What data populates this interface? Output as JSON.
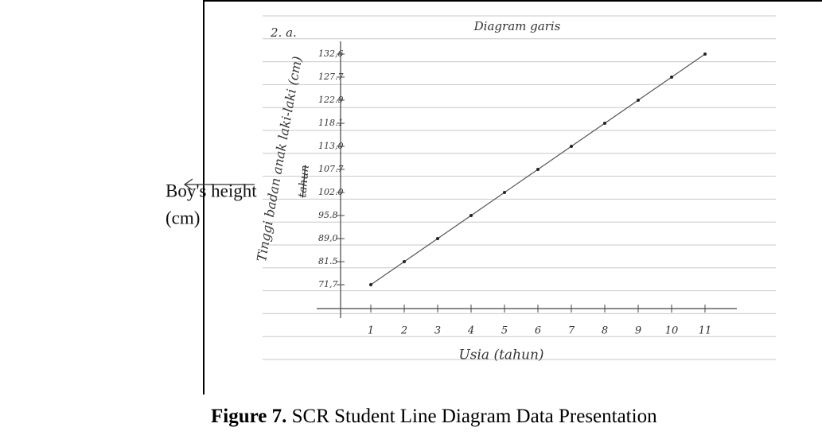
{
  "annotation": {
    "lines": [
      "Boy's height",
      "(cm)"
    ]
  },
  "chart_data": {
    "type": "line",
    "number": "2. a.",
    "title": "Diagram garis",
    "y_label": "Tinggi badan anak laki-laki (cm)",
    "y_label_struck": "tahun",
    "x_label": "Usia (tahun)",
    "x": [
      1,
      2,
      3,
      4,
      5,
      6,
      7,
      8,
      9,
      10,
      11
    ],
    "values": [
      71.7,
      81.5,
      89.0,
      95.8,
      102.0,
      107.7,
      113.0,
      118.1,
      122.9,
      127.7,
      132.6
    ],
    "color": "#555555",
    "xlim": [
      0,
      12
    ],
    "xticks": [
      1,
      2,
      3,
      4,
      5,
      6,
      7,
      8,
      9,
      10,
      11
    ],
    "yticks": [
      {
        "value": 71.7,
        "label": "71,7"
      },
      81.5,
      {
        "value": 89.0,
        "label": "89,0"
      },
      95.8,
      {
        "value": 102.0,
        "label": "102.0"
      },
      107.7,
      {
        "value": 113.0,
        "label": "113,0"
      },
      118.1,
      122.9,
      127.7,
      {
        "value": 132.6,
        "label": "132,6"
      }
    ]
  },
  "caption": {
    "label": "Figure 7.",
    "text": "SCR Student Line Diagram Data Presentation"
  }
}
